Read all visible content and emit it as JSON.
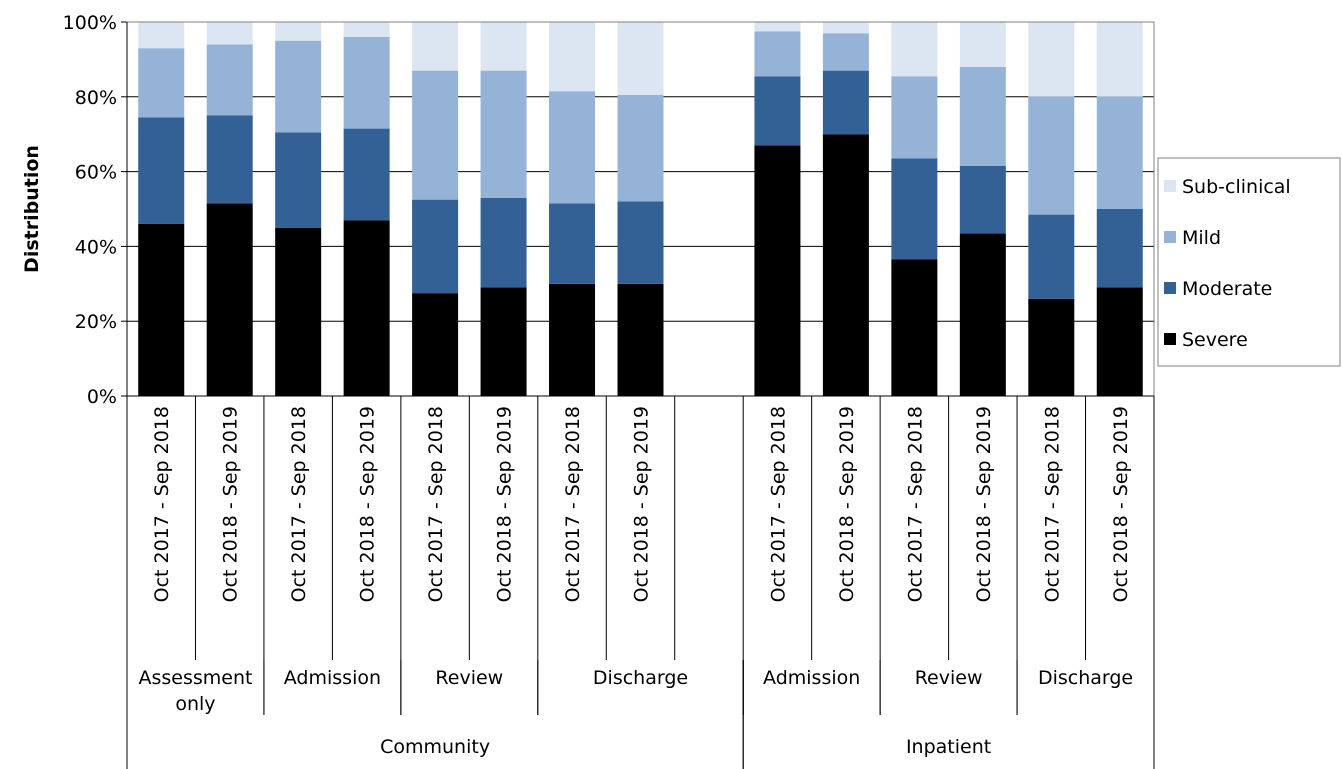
{
  "chart_data": {
    "type": "bar",
    "stacked": true,
    "title": "",
    "ylabel": "Distribution",
    "xlabel": "",
    "ylim": [
      0,
      100
    ],
    "yticks": [
      "0%",
      "20%",
      "40%",
      "60%",
      "80%",
      "100%"
    ],
    "grid": true,
    "legend_position": "right",
    "categories": [
      {
        "label": "Oct 2017 - Sep 2018",
        "stage": 0,
        "setting": 0
      },
      {
        "label": "Oct 2018 - Sep 2019",
        "stage": 0,
        "setting": 0
      },
      {
        "label": "Oct 2017 - Sep 2018",
        "stage": 1,
        "setting": 0
      },
      {
        "label": "Oct 2018 - Sep 2019",
        "stage": 1,
        "setting": 0
      },
      {
        "label": "Oct 2017 - Sep 2018",
        "stage": 2,
        "setting": 0
      },
      {
        "label": "Oct 2018 - Sep 2019",
        "stage": 2,
        "setting": 0
      },
      {
        "label": "Oct 2017 - Sep 2018",
        "stage": 3,
        "setting": 0
      },
      {
        "label": "Oct 2018 - Sep 2019",
        "stage": 3,
        "setting": 0
      },
      {
        "label": "",
        "stage": 3,
        "setting": 0
      },
      {
        "label": "Oct 2017 - Sep 2018",
        "stage": 4,
        "setting": 1
      },
      {
        "label": "Oct 2018 - Sep 2019",
        "stage": 4,
        "setting": 1
      },
      {
        "label": "Oct 2017 - Sep 2018",
        "stage": 5,
        "setting": 1
      },
      {
        "label": "Oct 2018 - Sep 2019",
        "stage": 5,
        "setting": 1
      },
      {
        "label": "Oct 2017 - Sep 2018",
        "stage": 6,
        "setting": 1
      },
      {
        "label": "Oct 2018 - Sep 2019",
        "stage": 6,
        "setting": 1
      }
    ],
    "stages": [
      {
        "lines": [
          "Assessment",
          "only"
        ]
      },
      {
        "lines": [
          "Admission"
        ]
      },
      {
        "lines": [
          "Review"
        ]
      },
      {
        "lines": [
          "Discharge"
        ]
      },
      {
        "lines": [
          "Admission"
        ]
      },
      {
        "lines": [
          "Review"
        ]
      },
      {
        "lines": [
          "Discharge"
        ]
      }
    ],
    "settings": [
      "Community",
      "Inpatient"
    ],
    "series": [
      {
        "name": "Severe",
        "color": "#000000",
        "values": [
          46,
          51.5,
          45,
          47,
          27.5,
          29,
          30,
          30,
          null,
          67,
          70,
          36.5,
          43.5,
          26,
          29
        ]
      },
      {
        "name": "Moderate",
        "color": "#336195",
        "values": [
          28.5,
          23.5,
          25.5,
          24.5,
          25,
          24,
          21.5,
          22,
          null,
          18.5,
          17,
          27,
          18,
          22.5,
          21
        ]
      },
      {
        "name": "Mild",
        "color": "#95B3D7",
        "values": [
          18.5,
          19,
          24.5,
          24.5,
          34.5,
          34,
          30,
          28.5,
          null,
          12,
          10,
          22,
          26.5,
          31.5,
          30
        ]
      },
      {
        "name": "Sub-clinical",
        "color": "#DCE6F2",
        "values": [
          7,
          6,
          5,
          4,
          13,
          13,
          18.5,
          19.5,
          null,
          2.5,
          3,
          14.5,
          12,
          20,
          20
        ]
      }
    ]
  }
}
